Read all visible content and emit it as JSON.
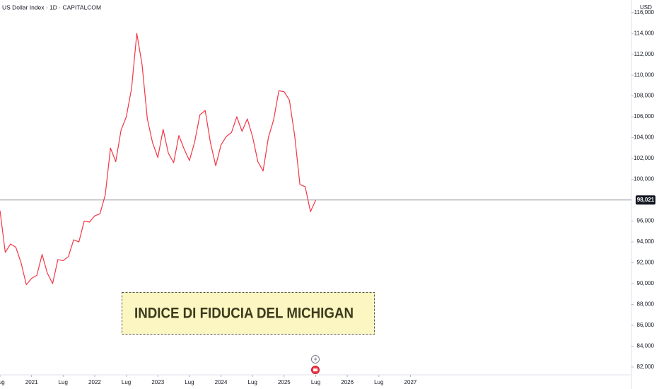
{
  "chart_data": {
    "type": "line",
    "title": "US Dollar Index · 1D · CAPITALCOM",
    "y_unit": "USD",
    "annotation": "INDICE DI FIDUCIA DEL MICHIGAN",
    "color": "#f23645",
    "x": [
      "2020-07",
      "2020-08",
      "2020-09",
      "2020-10",
      "2020-11",
      "2020-12",
      "2021-01",
      "2021-02",
      "2021-03",
      "2021-04",
      "2021-05",
      "2021-06",
      "2021-07",
      "2021-08",
      "2021-09",
      "2021-10",
      "2021-11",
      "2021-12",
      "2022-01",
      "2022-02",
      "2022-03",
      "2022-04",
      "2022-05",
      "2022-06",
      "2022-07",
      "2022-08",
      "2022-09",
      "2022-10",
      "2022-11",
      "2022-12",
      "2023-01",
      "2023-02",
      "2023-03",
      "2023-04",
      "2023-05",
      "2023-06",
      "2023-07",
      "2023-08",
      "2023-09",
      "2023-10",
      "2023-11",
      "2023-12",
      "2024-01",
      "2024-02",
      "2024-03",
      "2024-04",
      "2024-05",
      "2024-06",
      "2024-07",
      "2024-08",
      "2024-09",
      "2024-10",
      "2024-11",
      "2024-12",
      "2025-01",
      "2025-02",
      "2025-03",
      "2025-04",
      "2025-05",
      "2025-06",
      "2025-07"
    ],
    "values": [
      97.0,
      93.0,
      93.8,
      93.5,
      92.0,
      89.9,
      90.5,
      90.8,
      92.8,
      91.0,
      90.0,
      92.3,
      92.2,
      92.6,
      94.2,
      94.0,
      96.0,
      95.9,
      96.5,
      96.7,
      98.5,
      103.0,
      101.7,
      104.7,
      106.0,
      108.7,
      114.0,
      111.0,
      105.8,
      103.5,
      102.1,
      104.8,
      102.5,
      101.6,
      104.2,
      102.9,
      101.8,
      103.6,
      106.2,
      106.6,
      103.5,
      101.3,
      103.3,
      104.1,
      104.5,
      106.0,
      104.6,
      105.8,
      104.1,
      101.7,
      100.8,
      104.0,
      105.7,
      108.5,
      108.4,
      107.6,
      104.2,
      99.5,
      99.3,
      96.9,
      98.0
    ],
    "xlim": [
      "2020-07",
      "2030-07"
    ],
    "xticks": [
      {
        "value": "2020-07",
        "label": "Lug"
      },
      {
        "value": "2021-01",
        "label": "2021"
      },
      {
        "value": "2021-07",
        "label": "Lug"
      },
      {
        "value": "2022-01",
        "label": "2022"
      },
      {
        "value": "2022-07",
        "label": "Lug"
      },
      {
        "value": "2023-01",
        "label": "2023"
      },
      {
        "value": "2023-07",
        "label": "Lug"
      },
      {
        "value": "2024-01",
        "label": "2024"
      },
      {
        "value": "2024-07",
        "label": "Lug"
      },
      {
        "value": "2025-01",
        "label": "2025"
      },
      {
        "value": "2025-07",
        "label": "Lug"
      },
      {
        "value": "2026-01",
        "label": "2026"
      },
      {
        "value": "2026-07",
        "label": "Lug"
      },
      {
        "value": "2027-01",
        "label": "2027"
      }
    ],
    "ylim": [
      81.25,
      117.2
    ],
    "yticks": [
      {
        "value": 82,
        "label": "82,000"
      },
      {
        "value": 84,
        "label": "84,000"
      },
      {
        "value": 86,
        "label": "86,000"
      },
      {
        "value": 88,
        "label": "88,000"
      },
      {
        "value": 90,
        "label": "90,000"
      },
      {
        "value": 92,
        "label": "92,000"
      },
      {
        "value": 94,
        "label": "94,000"
      },
      {
        "value": 96,
        "label": "96,000"
      },
      {
        "value": 100,
        "label": "100,000"
      },
      {
        "value": 102,
        "label": "102,000"
      },
      {
        "value": 104,
        "label": "104,000"
      },
      {
        "value": 106,
        "label": "106,000"
      },
      {
        "value": 108,
        "label": "108,000"
      },
      {
        "value": 110,
        "label": "110,000"
      },
      {
        "value": 112,
        "label": "112,000"
      },
      {
        "value": 114,
        "label": "114,000"
      },
      {
        "value": 116,
        "label": "116,000"
      }
    ],
    "price_line": {
      "value": 98.021,
      "label": "98,021"
    },
    "grid": false
  }
}
